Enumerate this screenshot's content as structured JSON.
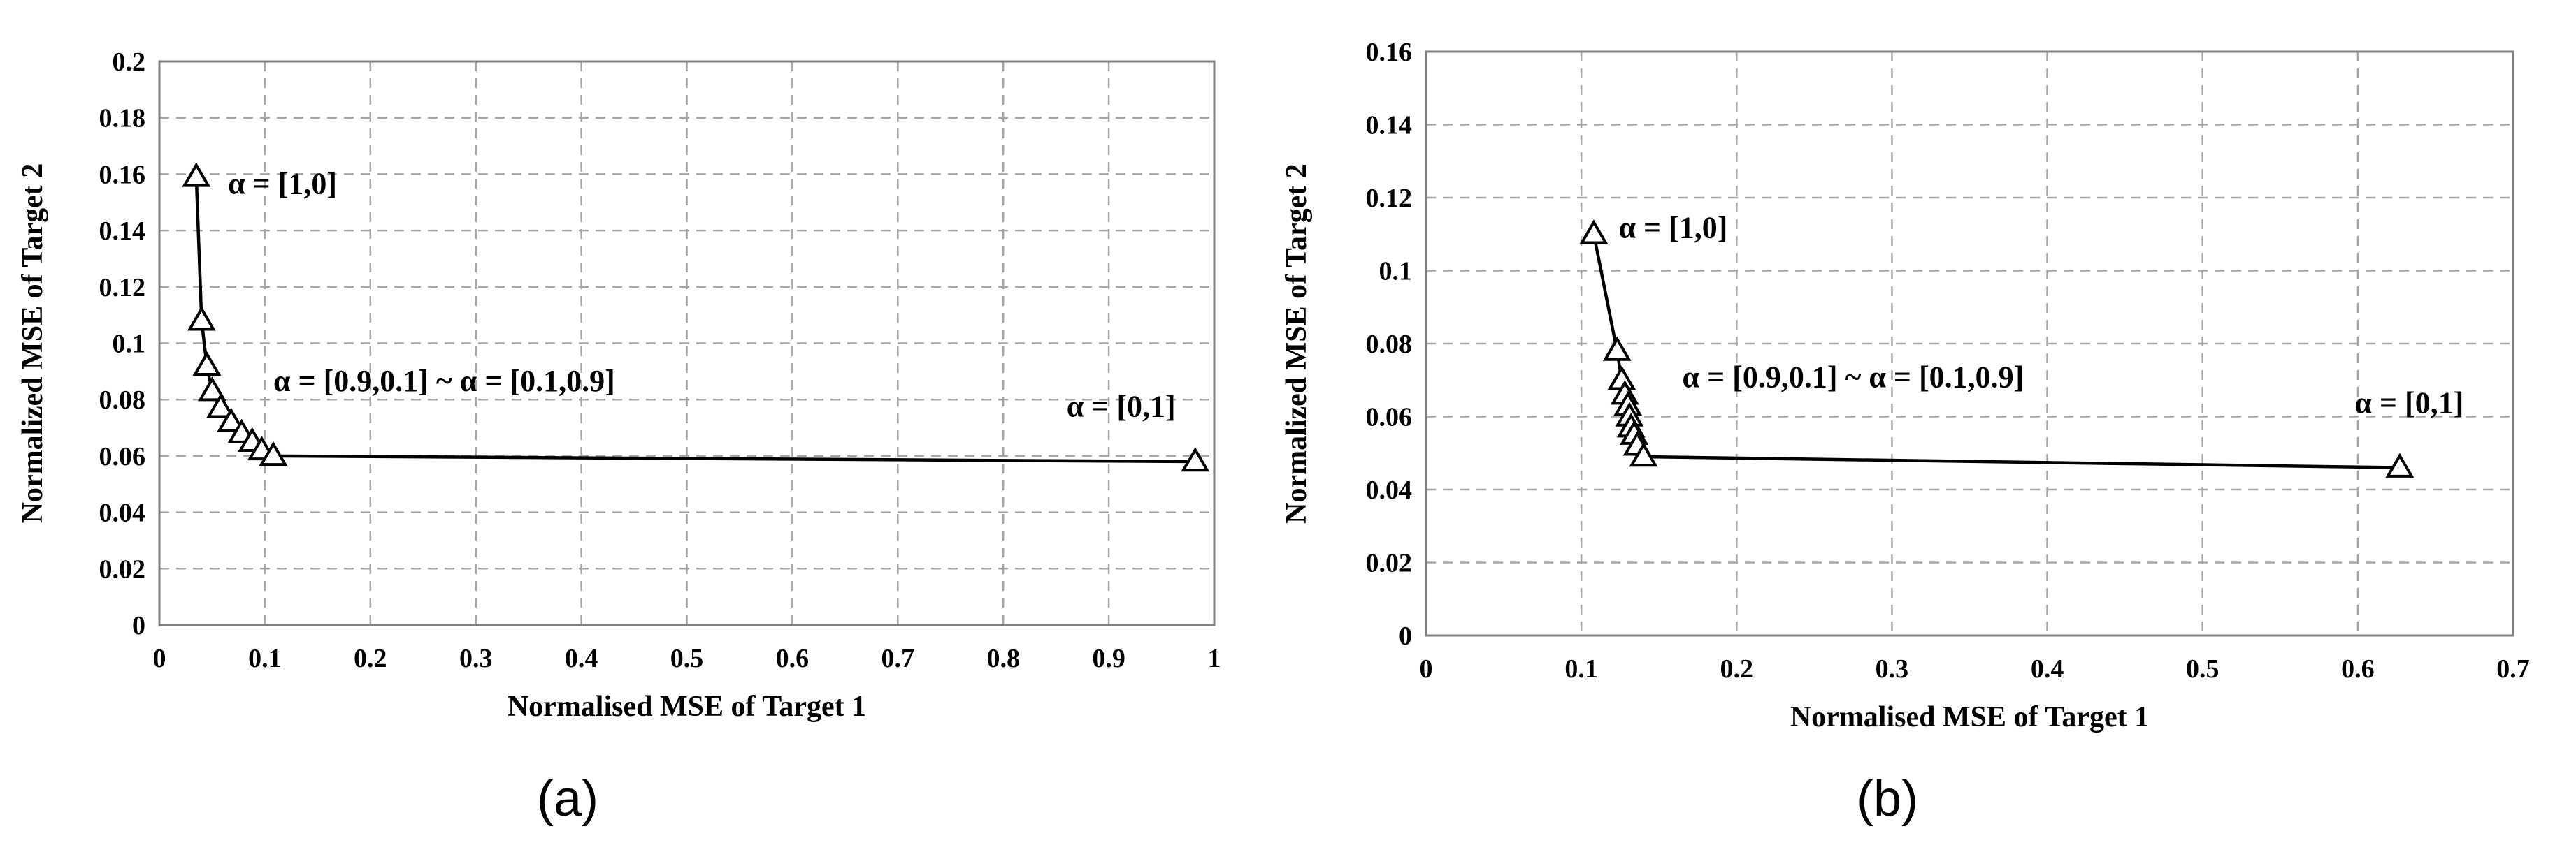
{
  "chart_data": [
    {
      "type": "line",
      "caption": "(a)",
      "xlabel": "Normalised MSE of Target 1",
      "ylabel": "Normalized MSE of Target 2",
      "xlim": [
        0,
        1
      ],
      "ylim": [
        0,
        0.2
      ],
      "x_ticks": [
        "0",
        "0.1",
        "0.2",
        "0.3",
        "0.4",
        "0.5",
        "0.6",
        "0.7",
        "0.8",
        "0.9",
        "1"
      ],
      "y_ticks": [
        "0",
        "0.02",
        "0.04",
        "0.06",
        "0.08",
        "0.1",
        "0.12",
        "0.14",
        "0.16",
        "0.18",
        "0.2"
      ],
      "grid": true,
      "marker": "triangle",
      "series": [
        {
          "x": [
            0.035,
            0.04,
            0.045,
            0.05,
            0.058,
            0.068,
            0.078,
            0.088,
            0.097,
            0.108,
            0.982
          ],
          "y": [
            0.159,
            0.108,
            0.092,
            0.083,
            0.077,
            0.072,
            0.068,
            0.065,
            0.062,
            0.06,
            0.058
          ]
        }
      ],
      "annotations": [
        {
          "text": "α = [1,0]",
          "x": 0.065,
          "y": 0.153
        },
        {
          "text": "α = [0.9,0.1] ~ α = [0.1,0.9]",
          "x": 0.108,
          "y": 0.083
        },
        {
          "text": "α = [0,1]",
          "x": 0.86,
          "y": 0.074
        }
      ]
    },
    {
      "type": "line",
      "caption": "(b)",
      "xlabel": "Normalised MSE of Target 1",
      "ylabel": "Normalized MSE of Target 2",
      "xlim": [
        0,
        0.7
      ],
      "ylim": [
        0,
        0.16
      ],
      "x_ticks": [
        "0",
        "0.1",
        "0.2",
        "0.3",
        "0.4",
        "0.5",
        "0.6",
        "0.7"
      ],
      "y_ticks": [
        "0",
        "0.02",
        "0.04",
        "0.06",
        "0.08",
        "0.1",
        "0.12",
        "0.14",
        "0.16"
      ],
      "grid": true,
      "marker": "triangle",
      "series": [
        {
          "x": [
            0.108,
            0.123,
            0.126,
            0.128,
            0.13,
            0.131,
            0.132,
            0.134,
            0.136,
            0.14,
            0.627
          ],
          "y": [
            0.11,
            0.078,
            0.07,
            0.066,
            0.063,
            0.06,
            0.057,
            0.055,
            0.052,
            0.049,
            0.046
          ]
        }
      ],
      "annotations": [
        {
          "text": "α = [1,0]",
          "x": 0.124,
          "y": 0.109
        },
        {
          "text": "α = [0.9,0.1] ~ α = [0.1,0.9]",
          "x": 0.165,
          "y": 0.068
        },
        {
          "text": "α = [0,1]",
          "x": 0.598,
          "y": 0.061
        }
      ]
    }
  ]
}
